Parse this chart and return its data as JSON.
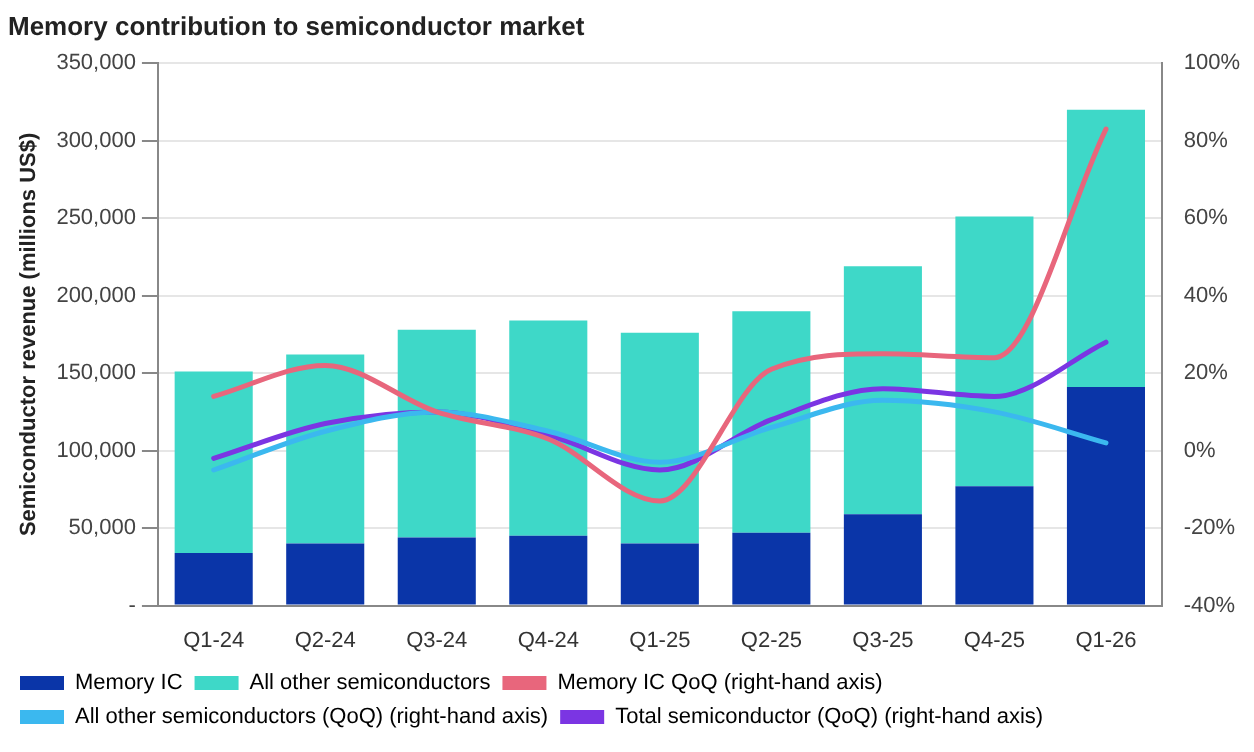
{
  "chart_data": {
    "type": "bar",
    "title": "Memory contribution to semiconductor market",
    "ylabel": "Semiconductor revenue (millions US$)",
    "stacked": true,
    "categories": [
      "Q1-24",
      "Q2-24",
      "Q3-24",
      "Q4-24",
      "Q1-25",
      "Q2-25",
      "Q3-25",
      "Q4-25",
      "Q1-26"
    ],
    "series": [
      {
        "name": "Memory IC",
        "color": "#0a35a8",
        "values": [
          34000,
          40000,
          44000,
          45000,
          40000,
          47000,
          59000,
          77000,
          141000
        ]
      },
      {
        "name": "All other semiconductors",
        "color": "#3ed8c8",
        "values": [
          117000,
          122000,
          134000,
          139000,
          136000,
          143000,
          160000,
          174000,
          179000
        ]
      },
      {
        "name": "Memory IC QoQ (right-hand axis)",
        "type": "line",
        "axis": "y2",
        "color": "#e8667c",
        "values": [
          14,
          22,
          10,
          3,
          -13,
          21,
          25,
          24,
          83
        ]
      },
      {
        "name": "All other semiconductors (QoQ) (right-hand axis)",
        "type": "line",
        "axis": "y2",
        "color": "#3bb8ef",
        "values": [
          -5,
          5,
          10,
          5,
          -3,
          6,
          13,
          10,
          2
        ]
      },
      {
        "name": "Total semiconductor (QoQ) (right-hand axis)",
        "type": "line",
        "axis": "y2",
        "color": "#7b35e3",
        "values": [
          -2,
          7,
          10,
          4,
          -5,
          8,
          16,
          14,
          28
        ]
      }
    ],
    "ylim": [
      0,
      350000
    ],
    "yticks": [
      {
        "value": 0,
        "label": "-"
      },
      {
        "value": 50000,
        "label": "50,000"
      },
      {
        "value": 100000,
        "label": "100,000"
      },
      {
        "value": 150000,
        "label": "150,000"
      },
      {
        "value": 200000,
        "label": "200,000"
      },
      {
        "value": 250000,
        "label": "250,000"
      },
      {
        "value": 300000,
        "label": "300,000"
      },
      {
        "value": 350000,
        "label": "350,000"
      }
    ],
    "y2lim": [
      -40,
      100
    ],
    "y2ticks": [
      {
        "value": -40,
        "label": "-40%"
      },
      {
        "value": -20,
        "label": "-20%"
      },
      {
        "value": 0,
        "label": "0%"
      },
      {
        "value": 20,
        "label": "20%"
      },
      {
        "value": 40,
        "label": "40%"
      },
      {
        "value": 60,
        "label": "60%"
      },
      {
        "value": 80,
        "label": "80%"
      },
      {
        "value": 100,
        "label": "100%"
      }
    ],
    "grid": "y",
    "legend": "bottom"
  }
}
